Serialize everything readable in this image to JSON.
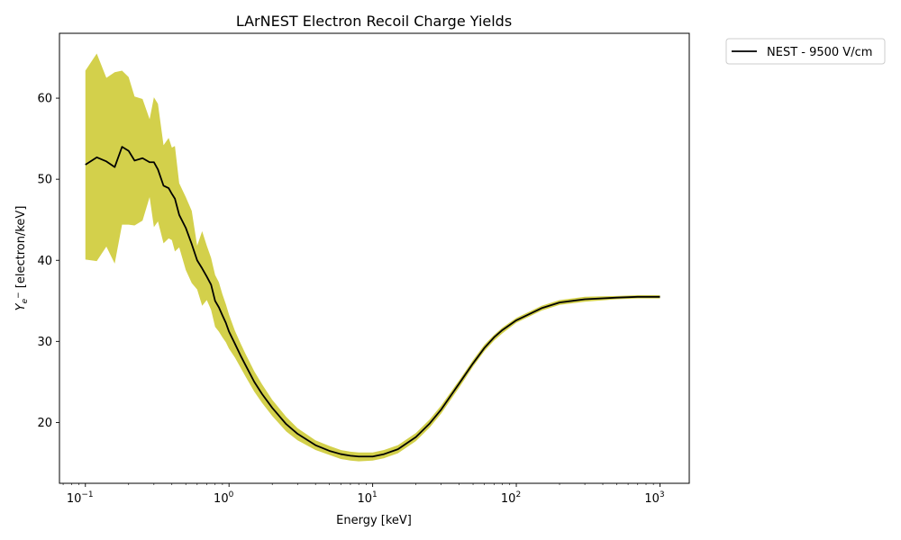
{
  "chart_data": {
    "type": "line",
    "title": "LArNEST Electron Recoil Charge Yields",
    "xlabel": "Energy [keV]",
    "ylabel": "Y_{e^-}  [electron/keV]",
    "x_scale": "log",
    "xlim": [
      0.066,
      1600
    ],
    "ylim": [
      12.5,
      68
    ],
    "x_ticks": [
      {
        "value": 0.1,
        "base": "10",
        "exp": "−1"
      },
      {
        "value": 1,
        "base": "10",
        "exp": "0"
      },
      {
        "value": 10,
        "base": "10",
        "exp": "1"
      },
      {
        "value": 100,
        "base": "10",
        "exp": "2"
      },
      {
        "value": 1000,
        "base": "10",
        "exp": "3"
      }
    ],
    "y_ticks": [
      "20",
      "30",
      "40",
      "50",
      "60"
    ],
    "grid": false,
    "legend_position": "outside-top-right",
    "colors": {
      "line": "#000000",
      "band": "#c8c41e"
    },
    "series": [
      {
        "name": "NEST - 9500 V/cm",
        "x": [
          0.1,
          0.12,
          0.14,
          0.16,
          0.18,
          0.2,
          0.22,
          0.25,
          0.28,
          0.3,
          0.32,
          0.35,
          0.38,
          0.4,
          0.42,
          0.45,
          0.5,
          0.55,
          0.6,
          0.65,
          0.7,
          0.75,
          0.8,
          0.85,
          0.9,
          0.95,
          1.0,
          1.1,
          1.2,
          1.3,
          1.5,
          1.7,
          2.0,
          2.5,
          3.0,
          4.0,
          5.0,
          6.0,
          7.0,
          8.0,
          10,
          12,
          15,
          20,
          25,
          30,
          40,
          50,
          60,
          70,
          80,
          100,
          150,
          200,
          300,
          500,
          700,
          1000
        ],
        "y": [
          51.8,
          52.7,
          52.2,
          51.5,
          54.0,
          53.5,
          52.3,
          52.6,
          52.1,
          52.1,
          51.2,
          49.2,
          48.9,
          48.2,
          47.6,
          45.6,
          44.0,
          42.0,
          40.0,
          39.0,
          38.0,
          37.0,
          35.0,
          34.2,
          33.2,
          32.3,
          31.2,
          29.7,
          28.3,
          27.1,
          25.0,
          23.5,
          21.8,
          19.8,
          18.6,
          17.2,
          16.5,
          16.1,
          15.9,
          15.8,
          15.8,
          16.1,
          16.7,
          18.2,
          19.9,
          21.6,
          24.8,
          27.3,
          29.2,
          30.5,
          31.4,
          32.6,
          34.1,
          34.8,
          35.2,
          35.4,
          35.5,
          35.5
        ],
        "band_upper": [
          63.4,
          65.5,
          62.5,
          63.2,
          63.4,
          62.6,
          60.2,
          59.9,
          57.4,
          60.1,
          59.3,
          54.2,
          55.1,
          53.9,
          54.1,
          49.5,
          47.8,
          46.1,
          41.8,
          43.6,
          41.8,
          40.3,
          38.2,
          37.3,
          35.8,
          34.6,
          33.3,
          31.3,
          29.8,
          28.5,
          26.3,
          24.7,
          22.8,
          20.7,
          19.3,
          17.8,
          17.1,
          16.6,
          16.4,
          16.3,
          16.3,
          16.6,
          17.2,
          18.7,
          20.4,
          22.1,
          25.2,
          27.7,
          29.6,
          30.8,
          31.7,
          32.9,
          34.4,
          35.1,
          35.5,
          35.6,
          35.7,
          35.7
        ],
        "band_lower": [
          40.1,
          39.9,
          41.7,
          39.6,
          44.4,
          44.4,
          44.3,
          44.9,
          47.8,
          44.1,
          44.8,
          42.1,
          42.7,
          42.5,
          41.1,
          41.6,
          38.8,
          37.2,
          36.4,
          34.4,
          35.1,
          33.9,
          31.8,
          31.2,
          30.5,
          29.9,
          29.1,
          28.0,
          26.8,
          25.7,
          23.8,
          22.4,
          20.8,
          18.9,
          17.8,
          16.6,
          16.0,
          15.5,
          15.3,
          15.2,
          15.3,
          15.6,
          16.2,
          17.7,
          19.4,
          21.1,
          24.3,
          26.9,
          28.8,
          30.1,
          31.0,
          32.3,
          33.8,
          34.5,
          34.9,
          35.2,
          35.3,
          35.3
        ]
      }
    ]
  }
}
